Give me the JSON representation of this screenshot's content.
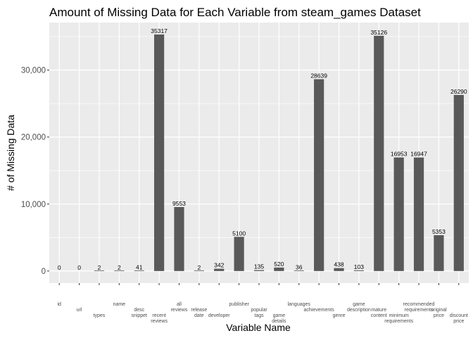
{
  "chart_data": {
    "type": "bar",
    "title": "Amount of Missing Data for Each Variable from steam_games Dataset",
    "xlabel": "Variable Name",
    "ylabel": "# of Missing Data",
    "ylim": [
      -1800,
      37100
    ],
    "yticks": [
      0,
      10000,
      20000,
      30000
    ],
    "ytick_labels": [
      "0",
      "10,000",
      "20,000",
      "30,000"
    ],
    "grid": true,
    "colors": {
      "panel": "#ebebeb",
      "grid_major": "#ffffff",
      "bar": "#595959",
      "tick_text": "#4d4d4d"
    },
    "categories": [
      "id",
      "url",
      "types",
      "name",
      "desc snippet",
      "recent reviews",
      "all reviews",
      "release date",
      "developer",
      "publisher",
      "popular tags",
      "game details",
      "languages",
      "achievements",
      "genre",
      "game description",
      "mature content",
      "minimum requirements",
      "recommended requirements",
      "original price",
      "discount price"
    ],
    "tick_lines": [
      [
        "id"
      ],
      [
        "url"
      ],
      [
        "types"
      ],
      [
        "name"
      ],
      [
        "desc",
        "snippet"
      ],
      [
        "recent",
        "reviews"
      ],
      [
        "all",
        "reviews"
      ],
      [
        "release",
        "date"
      ],
      [
        "developer"
      ],
      [
        "publisher"
      ],
      [
        "popular",
        "tags"
      ],
      [
        "game",
        "details"
      ],
      [
        "languages"
      ],
      [
        "achievements"
      ],
      [
        "genre"
      ],
      [
        "game",
        "description"
      ],
      [
        "mature",
        "content"
      ],
      [
        "minimum",
        "requirements"
      ],
      [
        "recommended",
        "requirements"
      ],
      [
        "original",
        "price"
      ],
      [
        "discount",
        "price"
      ]
    ],
    "values": [
      0,
      0,
      2,
      2,
      41,
      35317,
      9553,
      2,
      342,
      5100,
      135,
      520,
      36,
      28639,
      438,
      103,
      35126,
      16953,
      16947,
      5353,
      26290
    ],
    "data_labels": [
      "0",
      "0",
      "2",
      "2",
      "41",
      "35317",
      "9553",
      "2",
      "342",
      "5100",
      "135",
      "520",
      "36",
      "28639",
      "438",
      "103",
      "35126",
      "16953",
      "16947",
      "5353",
      "26290"
    ]
  }
}
